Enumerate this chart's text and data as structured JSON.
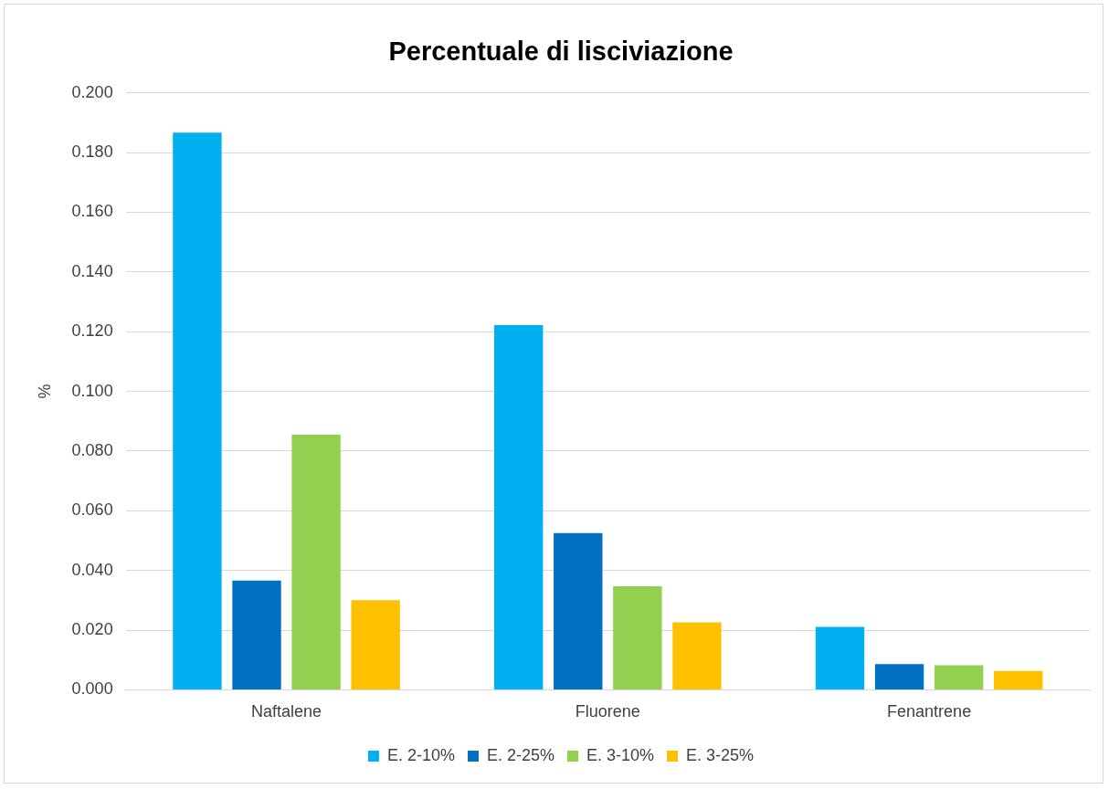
{
  "chart_data": {
    "type": "bar",
    "title": "Percentuale di lisciviazione",
    "ylabel": "%",
    "categories": [
      "Naftalene",
      "Fluorene",
      "Fenantrene"
    ],
    "series": [
      {
        "name": "E. 2-10%",
        "color": "#00b0f0",
        "values": [
          0.1867,
          0.1222,
          0.0211
        ]
      },
      {
        "name": "E. 2-25%",
        "color": "#0070c0",
        "values": [
          0.0366,
          0.0525,
          0.0086
        ]
      },
      {
        "name": "E. 3-10%",
        "color": "#92d050",
        "values": [
          0.0855,
          0.0347,
          0.0082
        ]
      },
      {
        "name": "E. 3-25%",
        "color": "#ffc000",
        "values": [
          0.03,
          0.0226,
          0.0063
        ]
      }
    ],
    "ylim": [
      0,
      0.2
    ],
    "yticks": [
      {
        "value": 0,
        "label": "0.000"
      },
      {
        "value": 0.02,
        "label": "0.020"
      },
      {
        "value": 0.04,
        "label": "0.040"
      },
      {
        "value": 0.06,
        "label": "0.060"
      },
      {
        "value": 0.08,
        "label": "0.080"
      },
      {
        "value": 0.1,
        "label": "0.100"
      },
      {
        "value": 0.12,
        "label": "0.120"
      },
      {
        "value": 0.14,
        "label": "0.140"
      },
      {
        "value": 0.16,
        "label": "0.160"
      },
      {
        "value": 0.18,
        "label": "0.180"
      },
      {
        "value": 0.2,
        "label": "0.200"
      }
    ],
    "grid": "y",
    "legend": "bottom"
  }
}
